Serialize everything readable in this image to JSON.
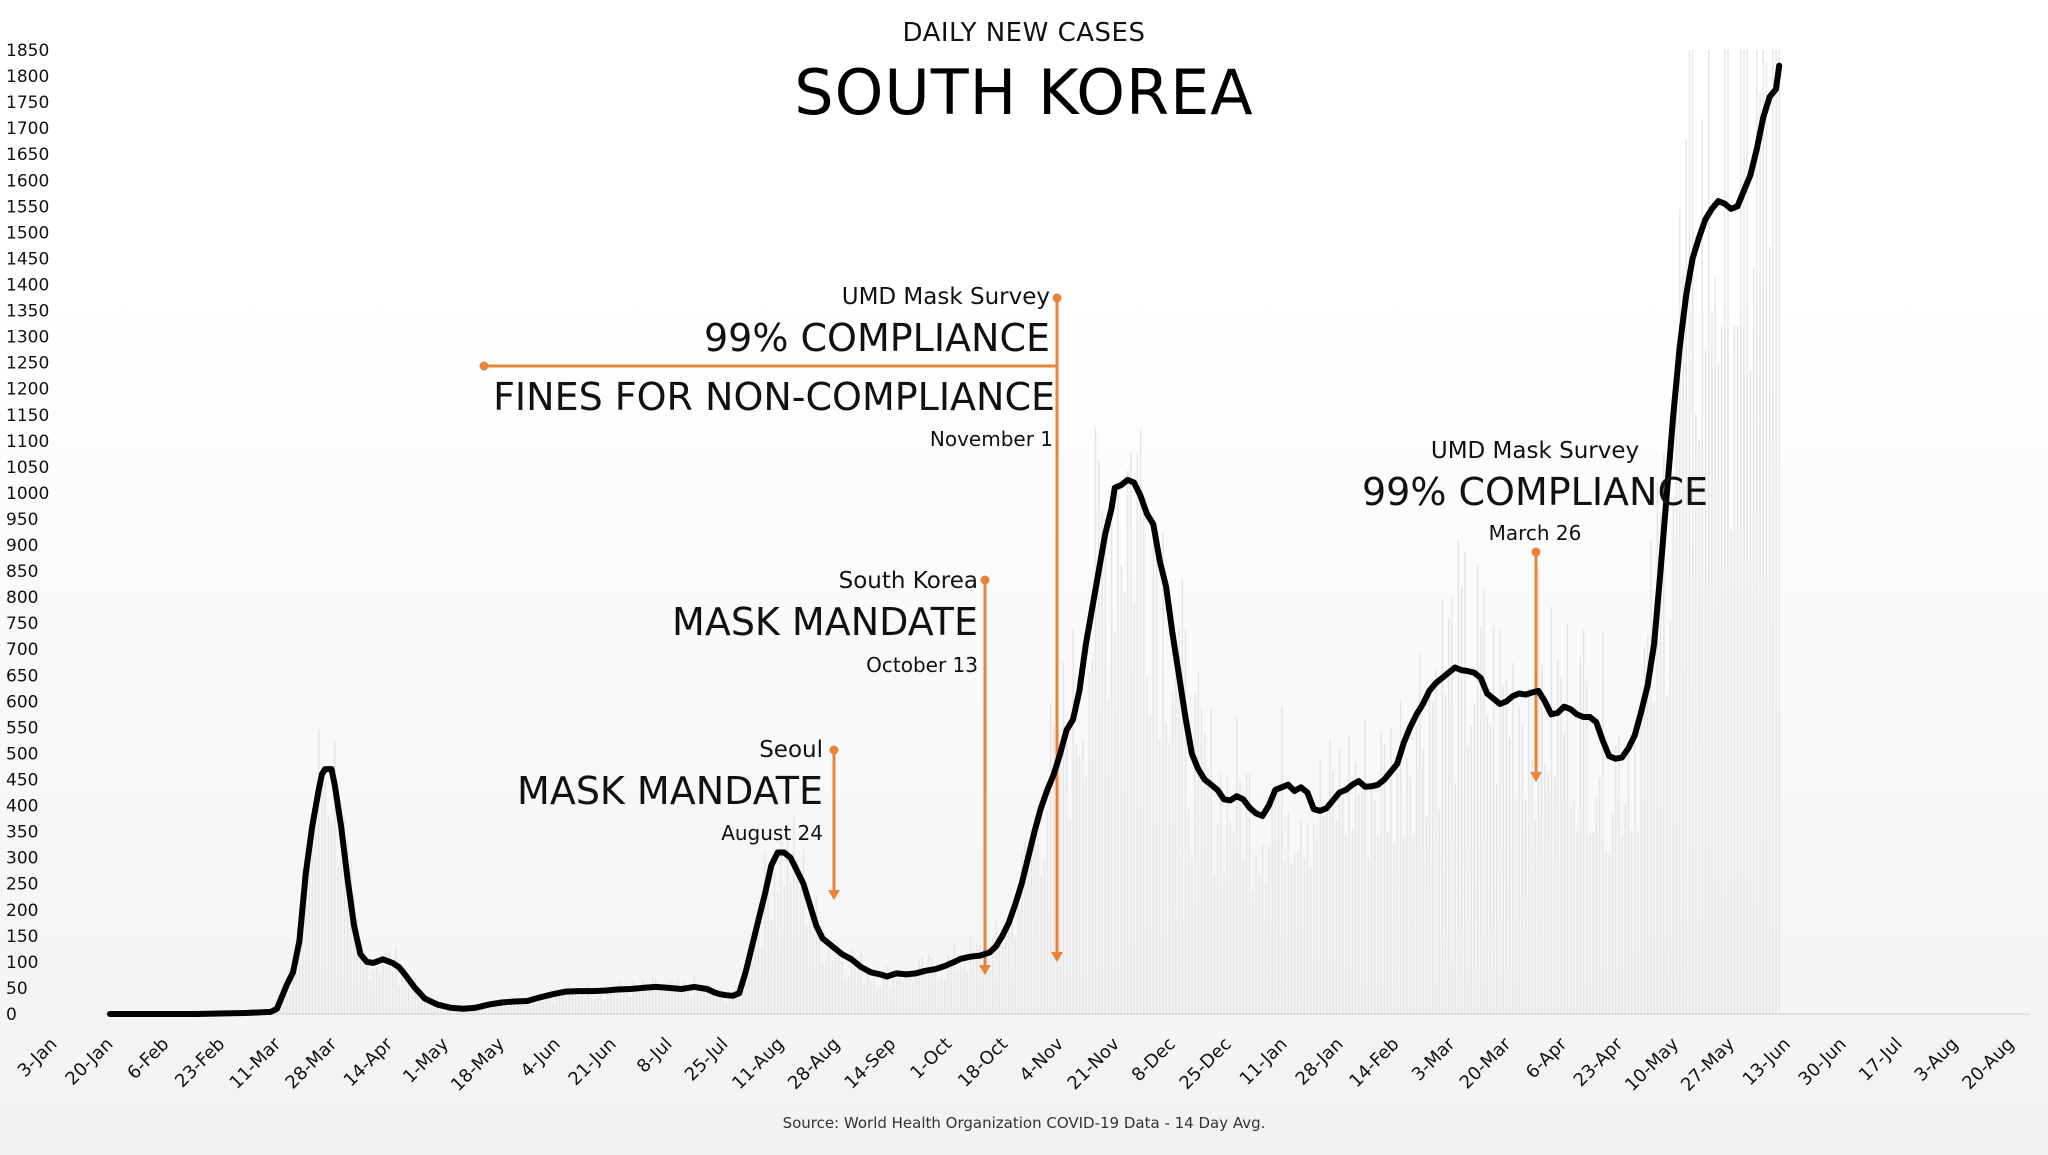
{
  "header": {
    "subtitle": "DAILY NEW CASES",
    "title": "SOUTH KOREA"
  },
  "source": "Source: World Health Organization COVID-19 Data - 14 Day Avg.",
  "colors": {
    "line": "#000000",
    "annotation": "#e8843a",
    "bars": "#e4e4e4"
  },
  "annotations": {
    "seoul": {
      "small": "Seoul",
      "big": "MASK MANDATE",
      "date": "August 24"
    },
    "korea": {
      "small": "South Korea",
      "big": "MASK MANDATE",
      "date": "October 13"
    },
    "umd1": {
      "small": "UMD Mask Survey",
      "big": "99% COMPLIANCE",
      "big2": "FINES FOR NON-COMPLIANCE",
      "date": "November 1"
    },
    "umd2": {
      "small": "UMD Mask Survey",
      "big": "99% COMPLIANCE",
      "date": "March 26"
    }
  },
  "chart_data": {
    "type": "line",
    "title": "SOUTH KOREA",
    "subtitle": "DAILY NEW CASES",
    "xlabel": "",
    "ylabel": "",
    "ylim": [
      0,
      1850
    ],
    "y_ticks": [
      0,
      50,
      100,
      150,
      200,
      250,
      300,
      350,
      400,
      450,
      500,
      550,
      600,
      650,
      700,
      750,
      800,
      850,
      900,
      950,
      1000,
      1050,
      1100,
      1150,
      1200,
      1250,
      1300,
      1350,
      1400,
      1450,
      1500,
      1550,
      1600,
      1650,
      1700,
      1750,
      1800,
      1850
    ],
    "x_ticks": [
      "3-Jan",
      "20-Jan",
      "6-Feb",
      "23-Feb",
      "11-Mar",
      "28-Mar",
      "14-Apr",
      "1-May",
      "18-May",
      "4-Jun",
      "21-Jun",
      "8-Jul",
      "25-Jul",
      "11-Aug",
      "28-Aug",
      "14-Sep",
      "1-Oct",
      "18-Oct",
      "4-Nov",
      "21-Nov",
      "8-Dec",
      "25-Dec",
      "11-Jan",
      "28-Jan",
      "14-Feb",
      "3-Mar",
      "20-Mar",
      "6-Apr",
      "23-Apr",
      "10-May",
      "27-May",
      "13-Jun",
      "30-Jun",
      "17-Jul",
      "3-Aug",
      "20-Aug"
    ],
    "grid": false,
    "legend": "none",
    "series": [
      {
        "values": [
          [
            0,
            0
          ],
          [
            10,
            0
          ],
          [
            17,
            0
          ],
          [
            27,
            0
          ],
          [
            34,
            1
          ],
          [
            42,
            2
          ],
          [
            50,
            4
          ],
          [
            52,
            10
          ],
          [
            55,
            55
          ],
          [
            57,
            80
          ],
          [
            59,
            140
          ],
          [
            61,
            270
          ],
          [
            63,
            360
          ],
          [
            65,
            430
          ],
          [
            66,
            460
          ],
          [
            67,
            470
          ],
          [
            69,
            470
          ],
          [
            70,
            440
          ],
          [
            72,
            360
          ],
          [
            74,
            260
          ],
          [
            76,
            170
          ],
          [
            78,
            115
          ],
          [
            80,
            100
          ],
          [
            82,
            98
          ],
          [
            85,
            105
          ],
          [
            88,
            98
          ],
          [
            90,
            90
          ],
          [
            92,
            75
          ],
          [
            95,
            50
          ],
          [
            98,
            30
          ],
          [
            102,
            18
          ],
          [
            106,
            12
          ],
          [
            110,
            10
          ],
          [
            114,
            12
          ],
          [
            118,
            18
          ],
          [
            122,
            22
          ],
          [
            126,
            24
          ],
          [
            130,
            25
          ],
          [
            134,
            32
          ],
          [
            138,
            38
          ],
          [
            142,
            43
          ],
          [
            146,
            44
          ],
          [
            150,
            44
          ],
          [
            154,
            45
          ],
          [
            158,
            47
          ],
          [
            162,
            48
          ],
          [
            166,
            50
          ],
          [
            170,
            52
          ],
          [
            174,
            50
          ],
          [
            178,
            48
          ],
          [
            182,
            52
          ],
          [
            186,
            48
          ],
          [
            188,
            42
          ],
          [
            190,
            38
          ],
          [
            192,
            36
          ],
          [
            194,
            35
          ],
          [
            196,
            40
          ],
          [
            198,
            80
          ],
          [
            200,
            130
          ],
          [
            202,
            180
          ],
          [
            204,
            230
          ],
          [
            206,
            285
          ],
          [
            208,
            310
          ],
          [
            210,
            310
          ],
          [
            212,
            300
          ],
          [
            214,
            275
          ],
          [
            216,
            250
          ],
          [
            218,
            210
          ],
          [
            220,
            170
          ],
          [
            222,
            145
          ],
          [
            225,
            130
          ],
          [
            228,
            115
          ],
          [
            231,
            105
          ],
          [
            234,
            90
          ],
          [
            237,
            80
          ],
          [
            240,
            76
          ],
          [
            242,
            72
          ],
          [
            245,
            78
          ],
          [
            248,
            76
          ],
          [
            251,
            78
          ],
          [
            254,
            83
          ],
          [
            257,
            86
          ],
          [
            260,
            92
          ],
          [
            263,
            100
          ],
          [
            265,
            106
          ],
          [
            268,
            110
          ],
          [
            271,
            112
          ],
          [
            274,
            118
          ],
          [
            276,
            130
          ],
          [
            278,
            150
          ],
          [
            280,
            175
          ],
          [
            282,
            210
          ],
          [
            284,
            250
          ],
          [
            286,
            300
          ],
          [
            288,
            350
          ],
          [
            290,
            395
          ],
          [
            292,
            430
          ],
          [
            294,
            460
          ],
          [
            296,
            500
          ],
          [
            298,
            545
          ],
          [
            300,
            565
          ],
          [
            302,
            620
          ],
          [
            304,
            710
          ],
          [
            306,
            780
          ],
          [
            308,
            850
          ],
          [
            310,
            920
          ],
          [
            312,
            970
          ],
          [
            313,
            1010
          ],
          [
            315,
            1015
          ],
          [
            317,
            1025
          ],
          [
            319,
            1020
          ],
          [
            321,
            995
          ],
          [
            323,
            960
          ],
          [
            325,
            940
          ],
          [
            327,
            870
          ],
          [
            329,
            820
          ],
          [
            331,
            730
          ],
          [
            333,
            650
          ],
          [
            335,
            570
          ],
          [
            337,
            500
          ],
          [
            339,
            470
          ],
          [
            341,
            450
          ],
          [
            343,
            440
          ],
          [
            345,
            430
          ],
          [
            347,
            412
          ],
          [
            349,
            410
          ],
          [
            351,
            418
          ],
          [
            353,
            412
          ],
          [
            355,
            396
          ],
          [
            357,
            385
          ],
          [
            359,
            380
          ],
          [
            361,
            400
          ],
          [
            363,
            430
          ],
          [
            365,
            435
          ],
          [
            367,
            440
          ],
          [
            369,
            428
          ],
          [
            371,
            435
          ],
          [
            373,
            425
          ],
          [
            375,
            393
          ],
          [
            377,
            390
          ],
          [
            379,
            395
          ],
          [
            381,
            410
          ],
          [
            383,
            425
          ],
          [
            385,
            430
          ],
          [
            387,
            440
          ],
          [
            389,
            447
          ],
          [
            391,
            436
          ],
          [
            393,
            437
          ],
          [
            395,
            440
          ],
          [
            397,
            450
          ],
          [
            399,
            465
          ],
          [
            401,
            480
          ],
          [
            403,
            520
          ],
          [
            405,
            550
          ],
          [
            407,
            575
          ],
          [
            409,
            595
          ],
          [
            411,
            620
          ],
          [
            413,
            635
          ],
          [
            415,
            645
          ],
          [
            417,
            655
          ],
          [
            419,
            665
          ],
          [
            421,
            660
          ],
          [
            423,
            658
          ],
          [
            425,
            655
          ],
          [
            427,
            645
          ],
          [
            429,
            615
          ],
          [
            431,
            605
          ],
          [
            433,
            595
          ],
          [
            435,
            600
          ],
          [
            437,
            610
          ],
          [
            439,
            615
          ],
          [
            441,
            613
          ],
          [
            443,
            617
          ],
          [
            445,
            620
          ],
          [
            447,
            600
          ],
          [
            449,
            575
          ],
          [
            451,
            578
          ],
          [
            453,
            590
          ],
          [
            455,
            585
          ],
          [
            457,
            575
          ],
          [
            459,
            570
          ],
          [
            461,
            570
          ],
          [
            463,
            560
          ],
          [
            465,
            525
          ],
          [
            467,
            495
          ],
          [
            469,
            490
          ],
          [
            471,
            492
          ],
          [
            473,
            510
          ],
          [
            475,
            535
          ],
          [
            477,
            580
          ],
          [
            479,
            630
          ],
          [
            481,
            710
          ],
          [
            483,
            850
          ],
          [
            485,
            1000
          ],
          [
            487,
            1150
          ],
          [
            489,
            1280
          ],
          [
            491,
            1380
          ],
          [
            493,
            1450
          ],
          [
            495,
            1490
          ],
          [
            497,
            1525
          ],
          [
            499,
            1545
          ],
          [
            501,
            1560
          ],
          [
            503,
            1555
          ],
          [
            505,
            1545
          ],
          [
            507,
            1550
          ],
          [
            509,
            1580
          ],
          [
            511,
            1610
          ],
          [
            513,
            1660
          ],
          [
            515,
            1720
          ],
          [
            517,
            1760
          ],
          [
            519,
            1775
          ],
          [
            520,
            1820
          ]
        ]
      }
    ]
  }
}
